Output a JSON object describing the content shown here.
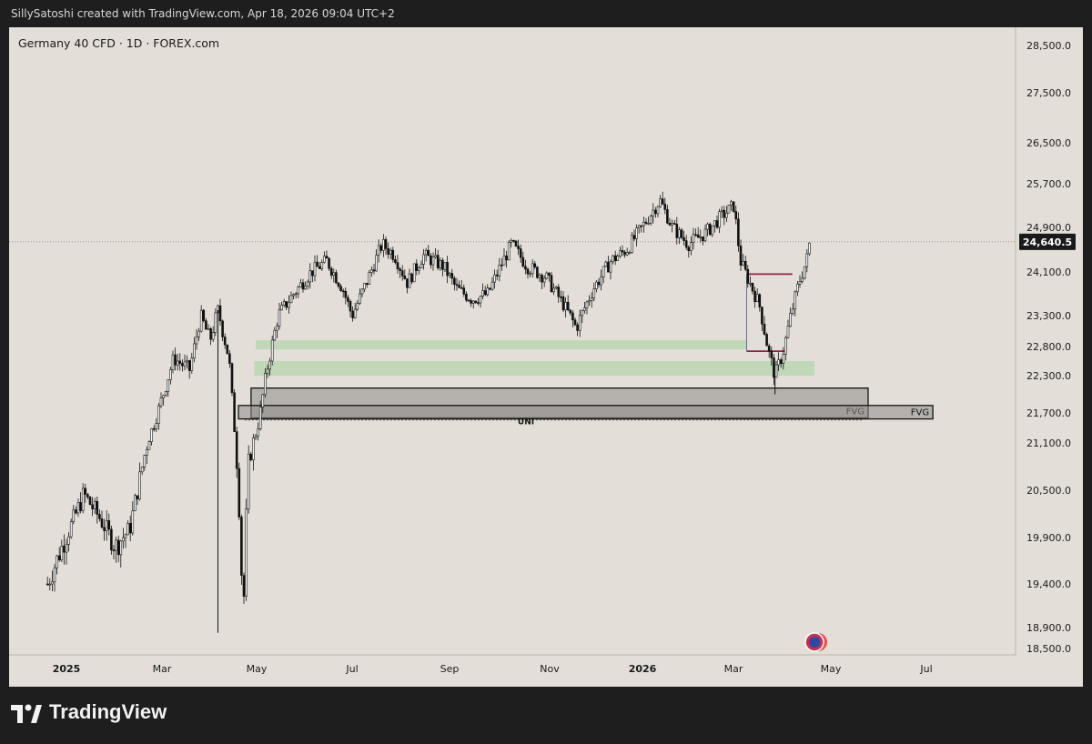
{
  "header": {
    "text": "SillySatoshi created with TradingView.com, Apr 18, 2026 09:04 UTC+2"
  },
  "chart_title": "Germany 40 CFD · 1D · FOREX.com",
  "footer": {
    "brand": "TradingView"
  },
  "chart_data": {
    "type": "candlestick",
    "y_ticks": [
      18500,
      18900,
      19400,
      19900,
      20500,
      21100,
      21700,
      22300,
      22800,
      23300,
      24100,
      24900,
      25700,
      26500,
      27500,
      28500
    ],
    "y_tick_labels": [
      "18,500.0",
      "18,900.0",
      "19,400.0",
      "19,900.0",
      "20,500.0",
      "21,100.0",
      "21,700.0",
      "22,300.0",
      "22,800.0",
      "23,300.0",
      "24,100.0",
      "24,900.0",
      "25,700.0",
      "26,500.0",
      "27,500.0",
      "28,500.0"
    ],
    "x_ticks": [
      {
        "label": "2025",
        "bold": true
      },
      {
        "label": "Mar",
        "bold": false
      },
      {
        "label": "May",
        "bold": false
      },
      {
        "label": "Jul",
        "bold": false
      },
      {
        "label": "Sep",
        "bold": false
      },
      {
        "label": "Nov",
        "bold": false
      },
      {
        "label": "2026",
        "bold": true
      },
      {
        "label": "Mar",
        "bold": false
      },
      {
        "label": "May",
        "bold": false
      },
      {
        "label": "Jul",
        "bold": false
      }
    ],
    "last_price": 24640.5,
    "last_price_label": "24,640.5",
    "price_path": [
      {
        "d": "2024-12-20",
        "p": 19400
      },
      {
        "d": "2025-01-05",
        "p": 20100
      },
      {
        "d": "2025-01-12",
        "p": 20450
      },
      {
        "d": "2025-01-22",
        "p": 20150
      },
      {
        "d": "2025-02-01",
        "p": 19800
      },
      {
        "d": "2025-02-10",
        "p": 20000
      },
      {
        "d": "2025-02-20",
        "p": 21000
      },
      {
        "d": "2025-03-01",
        "p": 21800
      },
      {
        "d": "2025-03-10",
        "p": 22600
      },
      {
        "d": "2025-03-20",
        "p": 22400
      },
      {
        "d": "2025-03-27",
        "p": 23300
      },
      {
        "d": "2025-04-02",
        "p": 22900
      },
      {
        "d": "2025-04-07",
        "p": 23400
      },
      {
        "d": "2025-04-14",
        "p": 22600
      },
      {
        "d": "2025-04-20",
        "p": 20500
      },
      {
        "d": "2025-04-23",
        "p": 19000
      },
      {
        "d": "2025-04-26",
        "p": 20800
      },
      {
        "d": "2025-05-02",
        "p": 21400
      },
      {
        "d": "2025-05-08",
        "p": 22400
      },
      {
        "d": "2025-05-15",
        "p": 23300
      },
      {
        "d": "2025-05-25",
        "p": 23700
      },
      {
        "d": "2025-06-05",
        "p": 24100
      },
      {
        "d": "2025-06-15",
        "p": 24300
      },
      {
        "d": "2025-06-25",
        "p": 23800
      },
      {
        "d": "2025-07-01",
        "p": 23300
      },
      {
        "d": "2025-07-10",
        "p": 23900
      },
      {
        "d": "2025-07-20",
        "p": 24600
      },
      {
        "d": "2025-07-28",
        "p": 24400
      },
      {
        "d": "2025-08-05",
        "p": 23900
      },
      {
        "d": "2025-08-15",
        "p": 24400
      },
      {
        "d": "2025-08-28",
        "p": 24200
      },
      {
        "d": "2025-09-05",
        "p": 23800
      },
      {
        "d": "2025-09-15",
        "p": 23600
      },
      {
        "d": "2025-09-25",
        "p": 23700
      },
      {
        "d": "2025-10-03",
        "p": 24200
      },
      {
        "d": "2025-10-10",
        "p": 24600
      },
      {
        "d": "2025-10-20",
        "p": 24200
      },
      {
        "d": "2025-11-01",
        "p": 24000
      },
      {
        "d": "2025-11-12",
        "p": 23500
      },
      {
        "d": "2025-11-20",
        "p": 23100
      },
      {
        "d": "2025-12-01",
        "p": 23800
      },
      {
        "d": "2025-12-12",
        "p": 24300
      },
      {
        "d": "2025-12-22",
        "p": 24500
      },
      {
        "d": "2026-01-03",
        "p": 25000
      },
      {
        "d": "2026-01-12",
        "p": 25400
      },
      {
        "d": "2026-01-20",
        "p": 24900
      },
      {
        "d": "2026-01-30",
        "p": 24600
      },
      {
        "d": "2026-02-10",
        "p": 24800
      },
      {
        "d": "2026-02-20",
        "p": 25100
      },
      {
        "d": "2026-02-28",
        "p": 25300
      },
      {
        "d": "2026-03-04",
        "p": 24300
      },
      {
        "d": "2026-03-10",
        "p": 23900
      },
      {
        "d": "2026-03-16",
        "p": 23500
      },
      {
        "d": "2026-03-22",
        "p": 22700
      },
      {
        "d": "2026-03-26",
        "p": 22300
      },
      {
        "d": "2026-03-31",
        "p": 22700
      },
      {
        "d": "2026-04-05",
        "p": 23300
      },
      {
        "d": "2026-04-10",
        "p": 23900
      },
      {
        "d": "2026-04-15",
        "p": 24300
      },
      {
        "d": "2026-04-17",
        "p": 24640
      }
    ],
    "wick_extremes": [
      {
        "d": "2025-04-07",
        "low": 18800
      },
      {
        "d": "2026-03-26",
        "low": 22000
      }
    ],
    "zones": [
      {
        "kind": "demand",
        "from": "2025-05-01",
        "to": "2026-03-08",
        "low": 22750,
        "high": 22900
      },
      {
        "kind": "demand",
        "from": "2025-04-30",
        "to": "2026-04-20",
        "low": 22300,
        "high": 22550
      },
      {
        "kind": "fvg",
        "label": "FVG",
        "from": "2025-04-28",
        "to": "2026-05-24",
        "low": 21600,
        "high": 22100
      },
      {
        "kind": "fvg",
        "label": "FVG",
        "from": "2025-04-20",
        "to": "2026-07-04",
        "low": 21580,
        "high": 21820
      }
    ],
    "lines": [
      {
        "kind": "dashed",
        "label": "UNI",
        "from": "2025-04-24",
        "to": "2026-05-20",
        "price": 21560
      },
      {
        "kind": "level",
        "from": "2026-03-08",
        "to": "2026-04-06",
        "price": 24060
      },
      {
        "kind": "level",
        "from": "2026-03-08",
        "to": "2026-04-02",
        "price": 22720
      },
      {
        "kind": "vertical",
        "date": "2026-03-08",
        "from": 22720,
        "to": 24060
      }
    ]
  }
}
